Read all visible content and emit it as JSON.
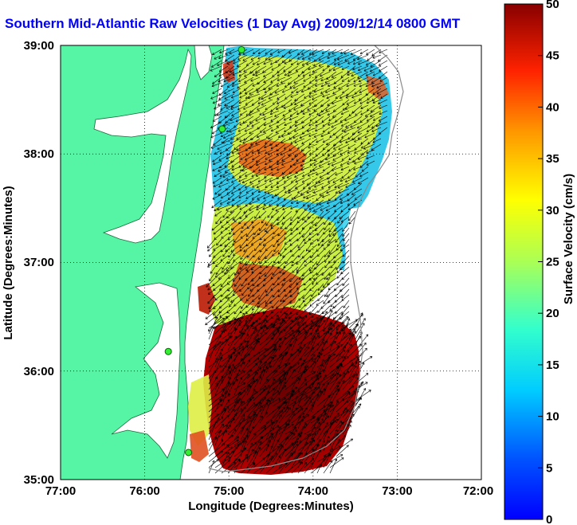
{
  "title": "Southern Mid-Atlantic Raw Velocities (1 Day Avg) 2009/12/14 0800 GMT",
  "map": {
    "xlabel": "Longitude (Degrees:Minutes)",
    "ylabel": "Latitude (Degrees:Minutes)",
    "x_ticks": [
      "77:00",
      "76:00",
      "75:00",
      "74:00",
      "73:00",
      "72:00"
    ],
    "y_ticks": [
      "39:00",
      "38:00",
      "37:00",
      "36:00",
      "35:00"
    ],
    "x_range_deg": [
      -77,
      -72
    ],
    "y_range_deg": [
      35,
      39
    ],
    "grid": "dotted",
    "land_color": "#55f5a5",
    "water_color": "#ffffff"
  },
  "colorbar": {
    "label": "Surface Velocity (cm/s)",
    "ticks": [
      "50",
      "45",
      "40",
      "35",
      "30",
      "25",
      "20",
      "15",
      "10",
      "5",
      "0"
    ],
    "range": [
      0,
      50
    ],
    "units": "cm/s"
  },
  "stations": [
    {
      "name": "station-1",
      "lon": -74.85,
      "lat": 38.96
    },
    {
      "name": "station-2",
      "lon": -75.08,
      "lat": 38.23
    },
    {
      "name": "station-3",
      "lon": -75.72,
      "lat": 36.18
    },
    {
      "name": "station-4",
      "lon": -75.48,
      "lat": 35.25
    }
  ]
}
